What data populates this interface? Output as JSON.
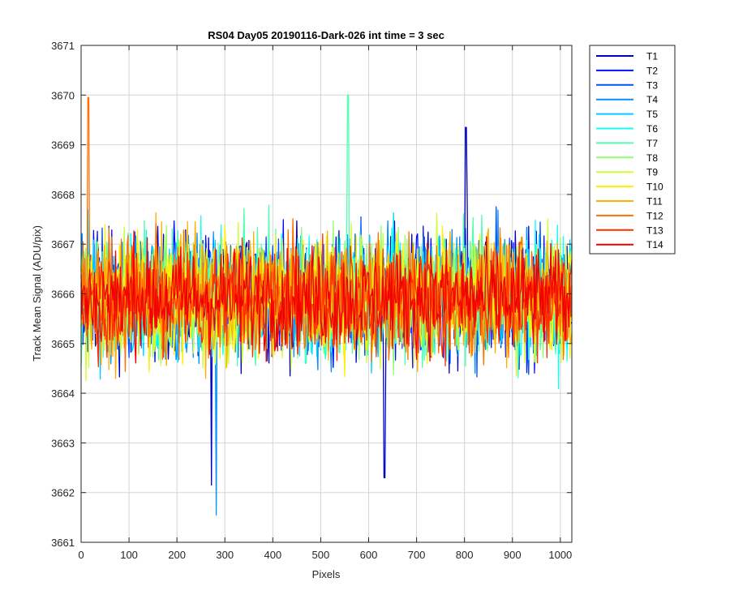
{
  "chart_data": {
    "type": "line",
    "title": "RS04 Day05 20190116-Dark-026 int time = 3 sec",
    "xlabel": "Pixels",
    "ylabel": "Track Mean Signal (ADU/pix)",
    "xlim": [
      0,
      1024
    ],
    "ylim": [
      3661,
      3671
    ],
    "xticks": [
      0,
      100,
      200,
      300,
      400,
      500,
      600,
      700,
      800,
      900,
      1000
    ],
    "yticks": [
      3661,
      3662,
      3663,
      3664,
      3665,
      3666,
      3667,
      3668,
      3669,
      3670,
      3671
    ],
    "grid": true,
    "legend_location": "outside-top-right",
    "series": [
      {
        "name": "T1",
        "color": "#0000bf",
        "mean": 3665.95,
        "noise": 0.85
      },
      {
        "name": "T2",
        "color": "#0010ff",
        "mean": 3665.95,
        "noise": 0.85
      },
      {
        "name": "T3",
        "color": "#0050ff",
        "mean": 3665.95,
        "noise": 0.85
      },
      {
        "name": "T4",
        "color": "#0090ff",
        "mean": 3665.95,
        "noise": 0.85
      },
      {
        "name": "T5",
        "color": "#00cfff",
        "mean": 3665.95,
        "noise": 0.85
      },
      {
        "name": "T6",
        "color": "#10ffef",
        "mean": 3665.95,
        "noise": 0.85
      },
      {
        "name": "T7",
        "color": "#50ffaf",
        "mean": 3665.95,
        "noise": 0.85
      },
      {
        "name": "T8",
        "color": "#8fff70",
        "mean": 3665.95,
        "noise": 0.85
      },
      {
        "name": "T9",
        "color": "#cfff30",
        "mean": 3665.95,
        "noise": 0.85
      },
      {
        "name": "T10",
        "color": "#ffef00",
        "mean": 3665.95,
        "noise": 0.85
      },
      {
        "name": "T11",
        "color": "#ffb000",
        "mean": 3665.95,
        "noise": 0.85
      },
      {
        "name": "T12",
        "color": "#ff7000",
        "mean": 3665.95,
        "noise": 0.8
      },
      {
        "name": "T13",
        "color": "#ff3000",
        "mean": 3665.9,
        "noise": 0.75
      },
      {
        "name": "T14",
        "color": "#f00000",
        "mean": 3665.9,
        "noise": 0.7
      }
    ],
    "annotations": [
      {
        "series": "T1",
        "x": 803,
        "y": 3669.35
      },
      {
        "series": "T4",
        "x": 282,
        "y": 3661.55
      },
      {
        "series": "T7",
        "x": 557,
        "y": 3670.0
      },
      {
        "series": "T12",
        "x": 15,
        "y": 3669.95
      },
      {
        "series": "T1",
        "x": 272,
        "y": 3662.15
      },
      {
        "series": "T1",
        "x": 633,
        "y": 3662.3
      }
    ]
  }
}
